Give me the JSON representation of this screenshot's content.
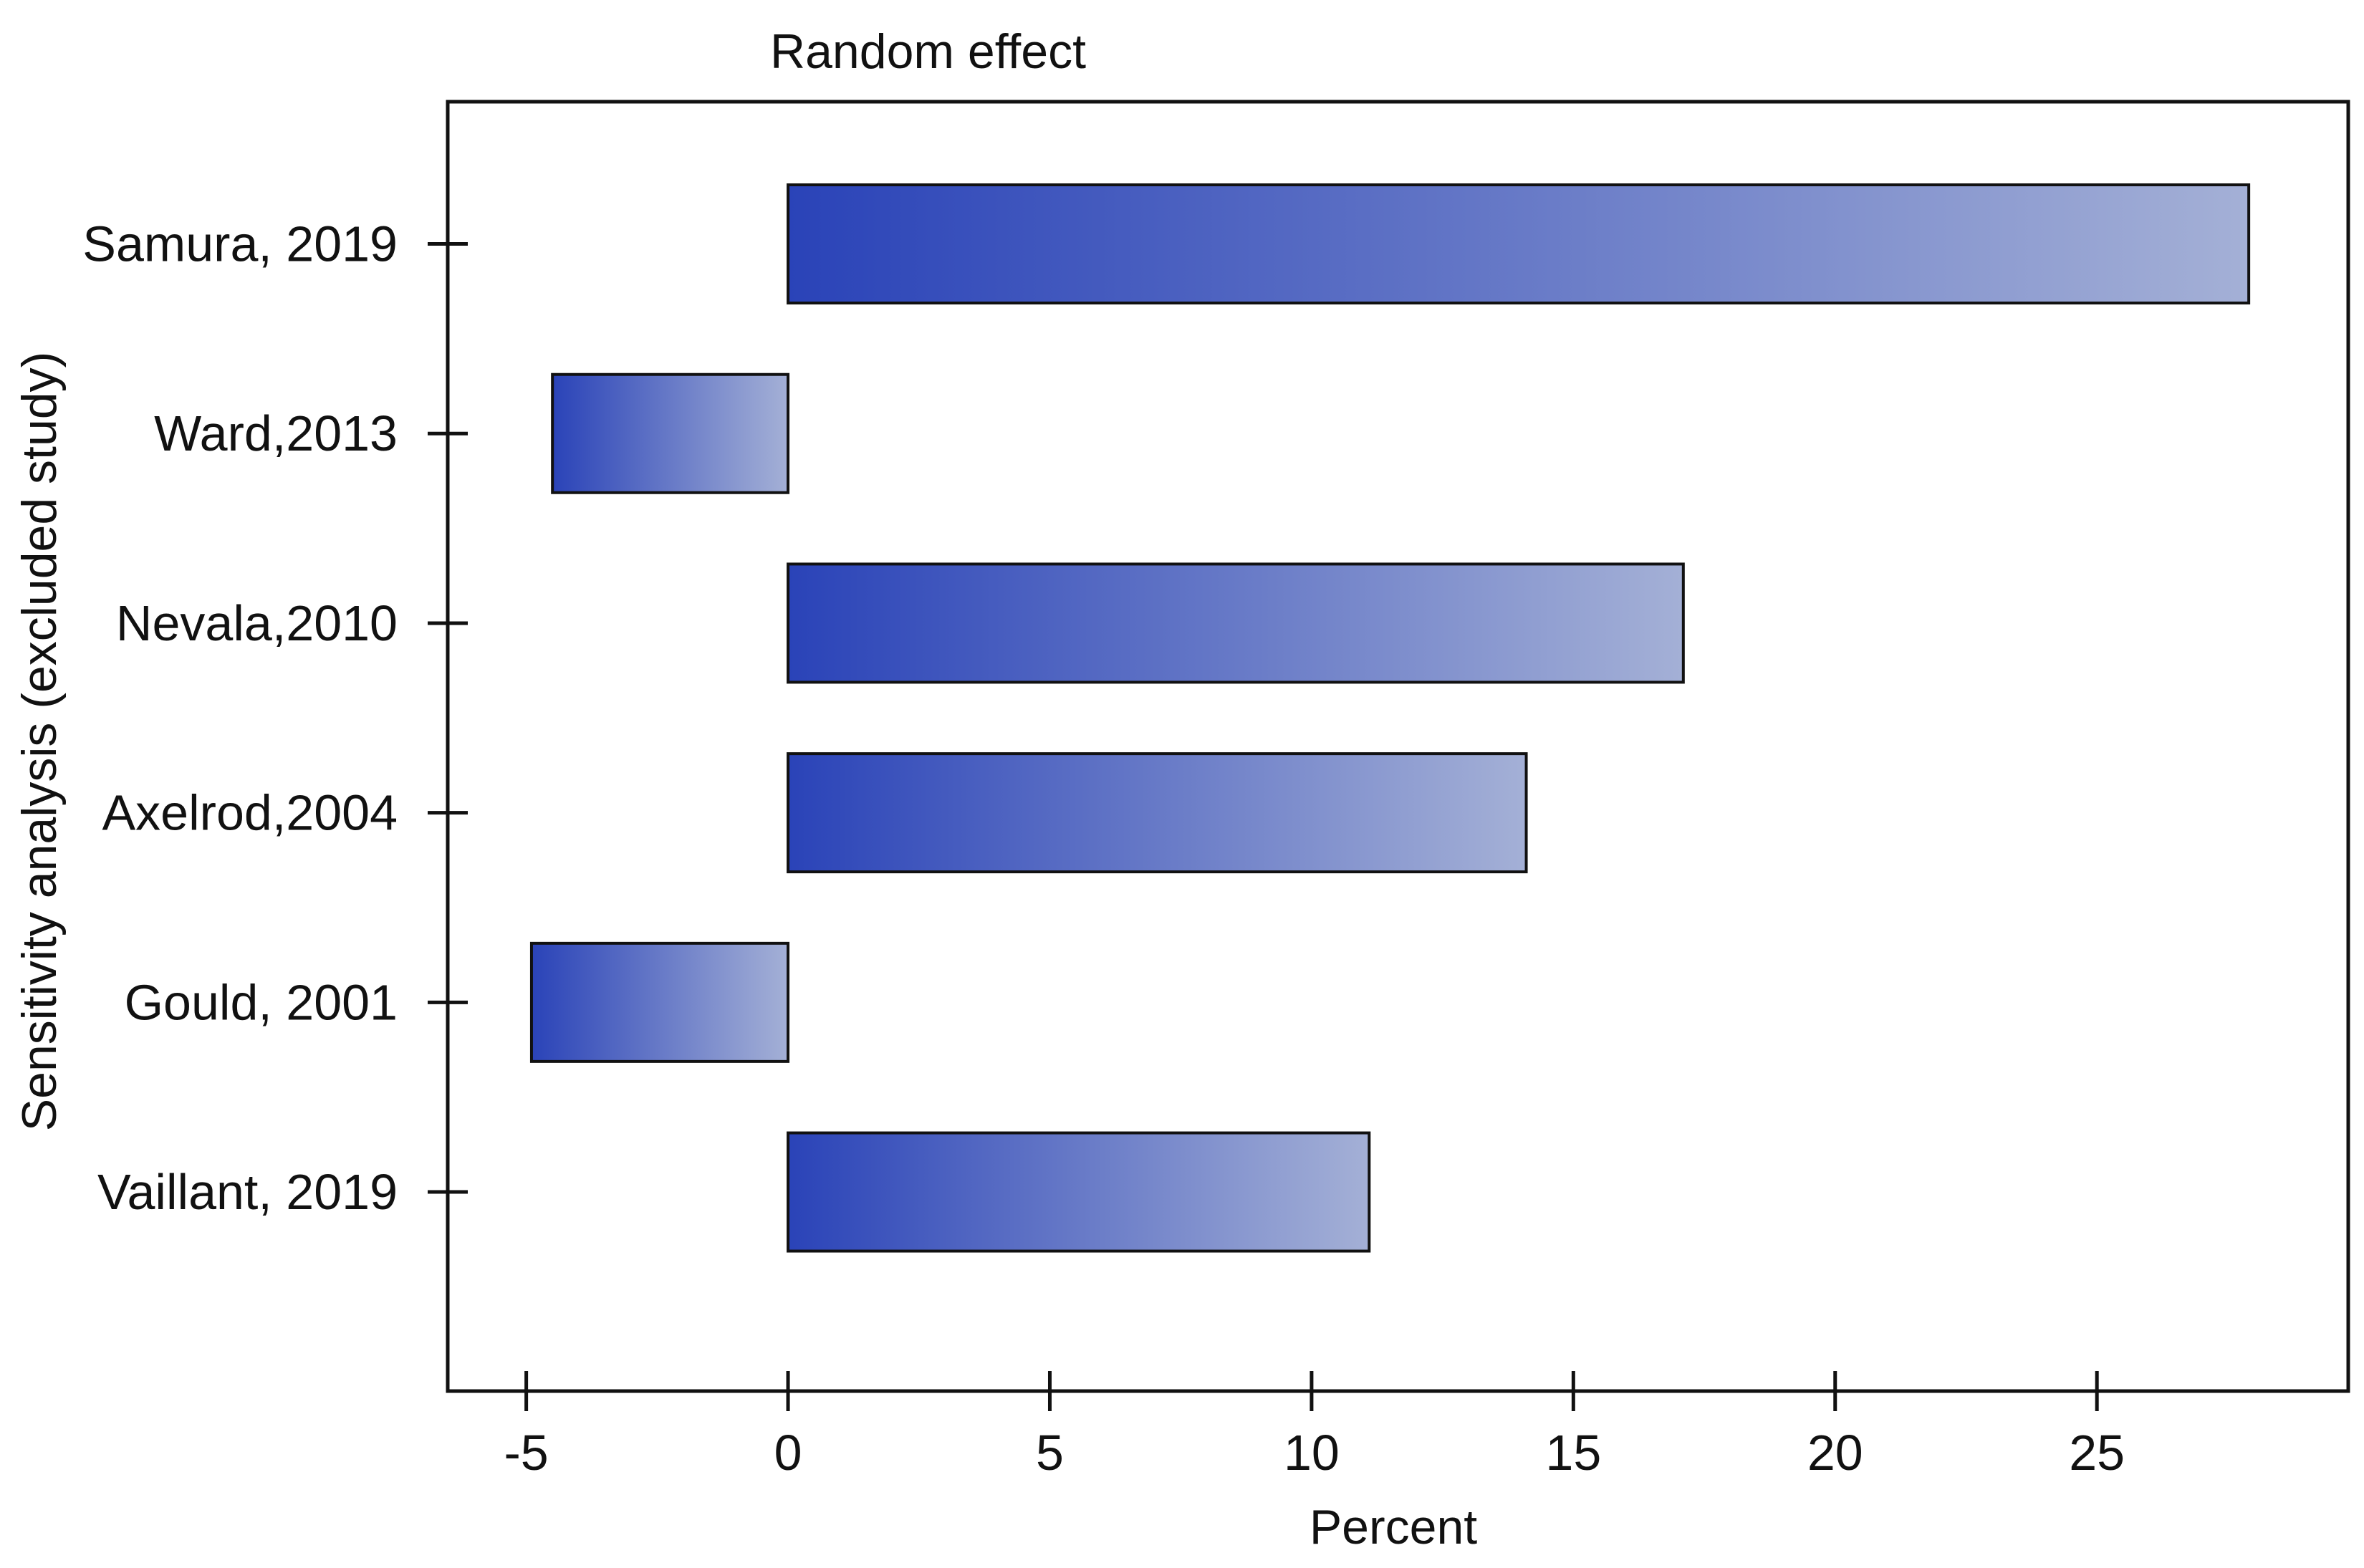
{
  "chart_data": {
    "type": "bar",
    "orientation": "horizontal",
    "title": "Random effect",
    "xlabel": "Percent",
    "ylabel": "Sensitivity analysis (excluded study)",
    "categories": [
      "Samura, 2019",
      "Ward,2013",
      "Nevala,2010",
      "Axelrod,2004",
      "Gould, 2001",
      "Vaillant, 2019"
    ],
    "values": [
      27.9,
      -4.5,
      17.1,
      14.1,
      -4.9,
      11.1
    ],
    "xlim": [
      -6.5,
      29.8
    ],
    "xticks": [
      -5,
      0,
      5,
      10,
      15,
      20,
      25
    ],
    "xtick_labels": [
      "-5",
      "0",
      "5",
      "10",
      "15",
      "20",
      "25"
    ],
    "grid": false,
    "legend": "none",
    "colors": {
      "bar_start": "#2a43b8",
      "bar_end": "#a4b0d6",
      "bar_edge": "#111111"
    }
  }
}
